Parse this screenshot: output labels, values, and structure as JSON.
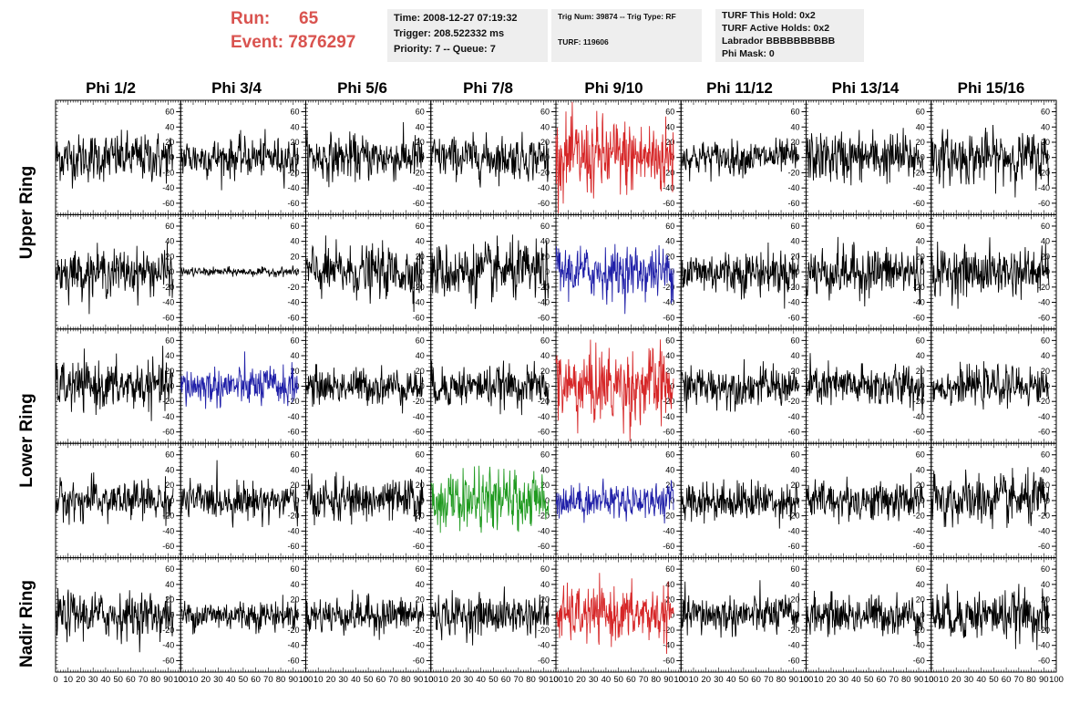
{
  "header": {
    "run_label": "Run:",
    "run_value": "65",
    "event_label": "Event:",
    "event_value": "7876297",
    "time_line": "Time: 2008-12-27 07:19:32",
    "trigger_line": "Trigger: 208.522332 ms",
    "priority_line": "Priority: 7 -- Queue: 7",
    "trig_line": "Trig Num: 39874 -- Trig Type: RF",
    "turf_line": "TURF: 119606",
    "turf_hold_line": "TURF This Hold: 0x2",
    "turf_active_line": "TURF Active Holds: 0x2",
    "labrador_line": "Labrador BBBBBBBBBB",
    "phi_mask_line": "Phi Mask: 0"
  },
  "colors": {
    "header_red": "#d9534f",
    "trace_black": "#000000",
    "trace_red": "#d62728",
    "trace_blue": "#1f1fa8",
    "trace_green": "#1f9a1f"
  },
  "chart_data": {
    "type": "line",
    "columns": [
      "Phi 1/2",
      "Phi 3/4",
      "Phi 5/6",
      "Phi 7/8",
      "Phi 9/10",
      "Phi 11/12",
      "Phi 13/14",
      "Phi 15/16"
    ],
    "rows": [
      {
        "label": "Upper Ring",
        "panels": 2
      },
      {
        "label": "Lower Ring",
        "panels": 2
      },
      {
        "label": "Nadir Ring",
        "panels": 1
      }
    ],
    "xlim": [
      0,
      100
    ],
    "ylim": [
      -75,
      75
    ],
    "x_ticks": [
      0,
      10,
      20,
      30,
      40,
      50,
      60,
      70,
      80,
      90,
      100
    ],
    "x_tick_labels": [
      "0",
      "10",
      "20",
      "30",
      "40",
      "50",
      "60",
      "70",
      "80",
      "90",
      "100"
    ],
    "y_ticks": [
      -60,
      -40,
      -20,
      0,
      20,
      40,
      60
    ],
    "y_tick_labels": [
      "-60",
      "-40",
      "-20",
      "0",
      "20",
      "40",
      "60"
    ],
    "waveform_samples": 260,
    "waveform_x_range": [
      0,
      94
    ],
    "panels": [
      [
        {
          "amp": 17,
          "color": "black"
        },
        {
          "amp": 14,
          "color": "black"
        },
        {
          "amp": 16,
          "color": "black"
        },
        {
          "amp": 15,
          "color": "black"
        },
        {
          "amp": 28,
          "color": "red"
        },
        {
          "amp": 12,
          "color": "black"
        },
        {
          "amp": 18,
          "color": "black"
        },
        {
          "amp": 18,
          "color": "black"
        }
      ],
      [
        {
          "amp": 16,
          "color": "black"
        },
        {
          "amp": 3,
          "color": "black"
        },
        {
          "amp": 18,
          "color": "black"
        },
        {
          "amp": 20,
          "color": "black"
        },
        {
          "amp": 18,
          "color": "blue"
        },
        {
          "amp": 16,
          "color": "black"
        },
        {
          "amp": 18,
          "color": "black"
        },
        {
          "amp": 17,
          "color": "black"
        }
      ],
      [
        {
          "amp": 17,
          "color": "black"
        },
        {
          "amp": 14,
          "color": "blue"
        },
        {
          "amp": 13,
          "color": "black"
        },
        {
          "amp": 14,
          "color": "black"
        },
        {
          "amp": 27,
          "color": "red"
        },
        {
          "amp": 14,
          "color": "black"
        },
        {
          "amp": 15,
          "color": "black"
        },
        {
          "amp": 13,
          "color": "black"
        }
      ],
      [
        {
          "amp": 14,
          "color": "black"
        },
        {
          "amp": 13,
          "color": "black"
        },
        {
          "amp": 15,
          "color": "black"
        },
        {
          "amp": 20,
          "color": "green"
        },
        {
          "amp": 12,
          "color": "blue"
        },
        {
          "amp": 14,
          "color": "black"
        },
        {
          "amp": 14,
          "color": "black"
        },
        {
          "amp": 18,
          "color": "black"
        }
      ],
      [
        {
          "amp": 16,
          "color": "black"
        },
        {
          "amp": 11,
          "color": "black"
        },
        {
          "amp": 13,
          "color": "black"
        },
        {
          "amp": 14,
          "color": "black"
        },
        {
          "amp": 19,
          "color": "red"
        },
        {
          "amp": 14,
          "color": "black"
        },
        {
          "amp": 14,
          "color": "black"
        },
        {
          "amp": 17,
          "color": "black"
        }
      ]
    ]
  }
}
